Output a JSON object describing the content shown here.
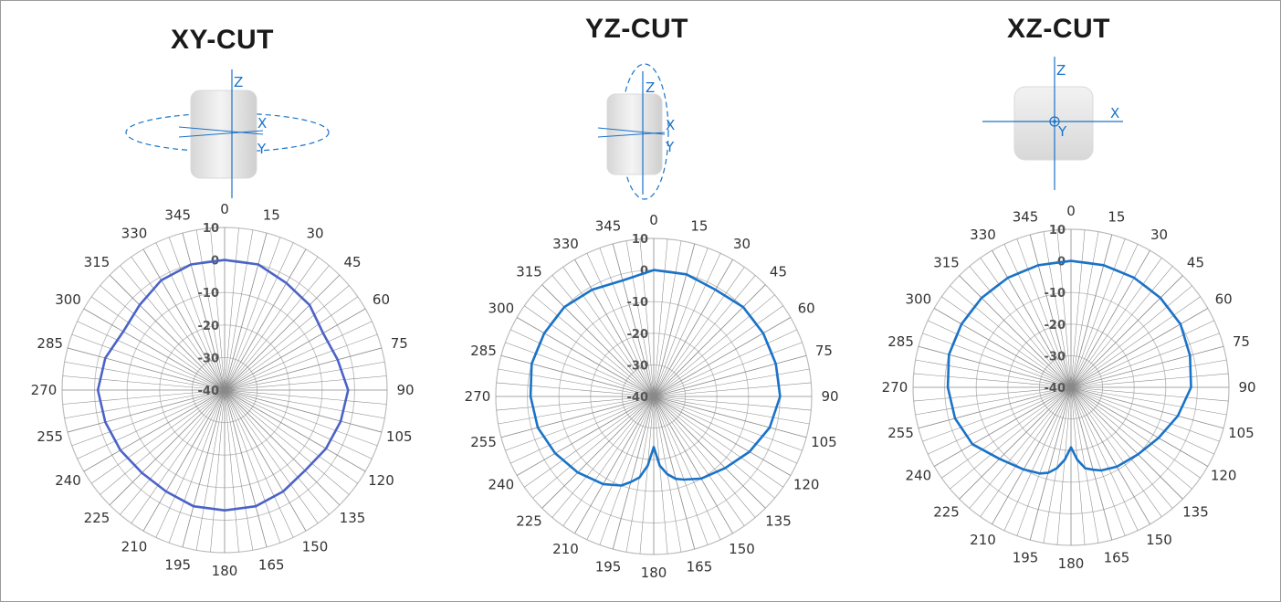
{
  "titles": [
    "XY-CUT",
    "YZ-CUT",
    "XZ-CUT"
  ],
  "axis_labels": {
    "x": "X",
    "y": "Y",
    "z": "Z"
  },
  "colors": {
    "accent": "#1a73c8",
    "xy_trace": "#4b63c8",
    "trace": "#1a73c8",
    "grid": "#bdbdbd",
    "spoke": "#8a8a8a"
  },
  "chart_data": [
    {
      "type": "polar-line",
      "title": "XY-CUT",
      "r_ticks": [
        10,
        0,
        -10,
        -20,
        -30,
        -40
      ],
      "r_range": [
        -40,
        10
      ],
      "angle_ticks": [
        0,
        15,
        30,
        45,
        60,
        75,
        90,
        105,
        120,
        135,
        150,
        165,
        180,
        195,
        210,
        225,
        240,
        255,
        270,
        285,
        300,
        315,
        330,
        345
      ],
      "theta": [
        0,
        15,
        30,
        45,
        60,
        75,
        90,
        105,
        120,
        135,
        150,
        165,
        180,
        195,
        210,
        225,
        240,
        255,
        270,
        285,
        300,
        315,
        330,
        345
      ],
      "r": [
        0,
        0,
        -2,
        -3,
        -5,
        -4,
        -2,
        -3,
        -4,
        -5,
        -4,
        -3,
        -3,
        -3,
        -4,
        -4,
        -3,
        -2,
        -1,
        -2,
        -4,
        -3,
        -1,
        0
      ],
      "color": "#4b63c8"
    },
    {
      "type": "polar-line",
      "title": "YZ-CUT",
      "r_ticks": [
        10,
        0,
        -10,
        -20,
        -30,
        -40
      ],
      "r_range": [
        -40,
        10
      ],
      "angle_ticks": [
        0,
        15,
        30,
        45,
        60,
        75,
        90,
        105,
        120,
        135,
        150,
        165,
        180,
        195,
        210,
        225,
        240,
        255,
        270,
        285,
        300,
        315,
        330,
        345
      ],
      "theta": [
        0,
        15,
        30,
        45,
        60,
        75,
        90,
        105,
        120,
        135,
        150,
        160,
        165,
        170,
        175,
        180,
        185,
        190,
        195,
        200,
        210,
        225,
        240,
        255,
        270,
        285,
        300,
        315,
        330,
        345
      ],
      "r": [
        0,
        0,
        -1,
        0,
        0,
        0,
        0,
        -2,
        -5,
        -8,
        -10,
        -12,
        -13,
        -15,
        -18,
        -24,
        -18,
        -14,
        -12,
        -10,
        -8,
        -6,
        -4,
        -2,
        -1,
        0,
        0,
        0,
        -1,
        -2
      ],
      "color": "#1a73c8"
    },
    {
      "type": "polar-line",
      "title": "XZ-CUT",
      "r_ticks": [
        10,
        0,
        -10,
        -20,
        -30,
        -40
      ],
      "r_range": [
        -40,
        10
      ],
      "angle_ticks": [
        0,
        15,
        30,
        45,
        60,
        75,
        90,
        105,
        120,
        135,
        150,
        165,
        180,
        195,
        210,
        225,
        240,
        255,
        270,
        285,
        300,
        315,
        330,
        345
      ],
      "theta": [
        0,
        15,
        30,
        45,
        60,
        75,
        90,
        105,
        120,
        135,
        150,
        160,
        165,
        170,
        175,
        180,
        185,
        190,
        195,
        200,
        210,
        225,
        240,
        255,
        270,
        285,
        300,
        315,
        330,
        345
      ],
      "r": [
        0,
        0,
        0,
        0,
        0,
        -1,
        -2,
        -5,
        -8,
        -10,
        -11,
        -12,
        -13,
        -14,
        -17,
        -21,
        -17,
        -14,
        -12,
        -11,
        -10,
        -8,
        -4,
        -2,
        -1,
        0,
        0,
        0,
        0,
        0
      ],
      "color": "#1a73c8"
    }
  ]
}
